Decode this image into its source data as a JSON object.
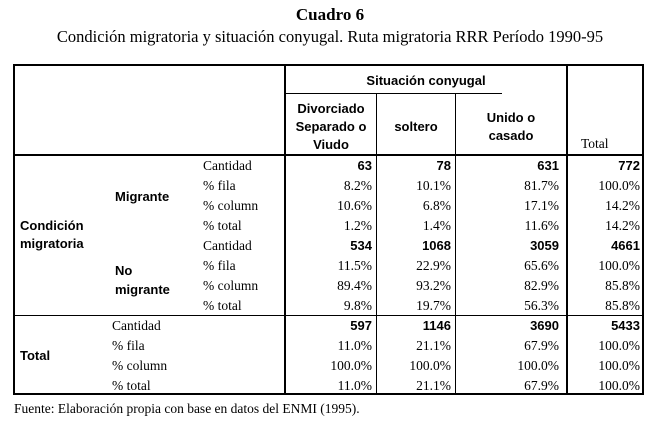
{
  "caption": {
    "number": "Cuadro 6",
    "title": "Condición migratoria y situación conyugal. Ruta migratoria RRR Período 1990-95"
  },
  "table": {
    "group_header": "Situación conyugal",
    "columns": [
      "Divorciado\nSeparado o\nViudo",
      "soltero",
      "Unido o\ncasado",
      "Total"
    ],
    "row_group_label": "Condición\nmigratoria",
    "groups": [
      {
        "label": "Migrante",
        "rows": [
          {
            "measure": "Cantidad",
            "values": [
              "63",
              "78",
              "631",
              "772"
            ]
          },
          {
            "measure": "% fila",
            "values": [
              "8.2%",
              "10.1%",
              "81.7%",
              "100.0%"
            ]
          },
          {
            "measure": "% column",
            "values": [
              "10.6%",
              "6.8%",
              "17.1%",
              "14.2%"
            ]
          },
          {
            "measure": "% total",
            "values": [
              "1.2%",
              "1.4%",
              "11.6%",
              "14.2%"
            ]
          }
        ]
      },
      {
        "label": "No\nmigrante",
        "rows": [
          {
            "measure": "Cantidad",
            "values": [
              "534",
              "1068",
              "3059",
              "4661"
            ]
          },
          {
            "measure": "% fila",
            "values": [
              "11.5%",
              "22.9%",
              "65.6%",
              "100.0%"
            ]
          },
          {
            "measure": "% column",
            "values": [
              "89.4%",
              "93.2%",
              "82.9%",
              "85.8%"
            ]
          },
          {
            "measure": "% total",
            "values": [
              "9.8%",
              "19.7%",
              "56.3%",
              "85.8%"
            ]
          }
        ]
      }
    ],
    "total": {
      "label": "Total",
      "rows": [
        {
          "measure": "Cantidad",
          "values": [
            "597",
            "1146",
            "3690",
            "5433"
          ]
        },
        {
          "measure": "% fila",
          "values": [
            "11.0%",
            "21.1%",
            "67.9%",
            "100.0%"
          ]
        },
        {
          "measure": "% column",
          "values": [
            "100.0%",
            "100.0%",
            "100.0%",
            "100.0%"
          ]
        },
        {
          "measure": "% total",
          "values": [
            "11.0%",
            "21.1%",
            "67.9%",
            "100.0%"
          ]
        }
      ]
    }
  },
  "source": "Fuente: Elaboración propia con base en datos del ENMI (1995)."
}
